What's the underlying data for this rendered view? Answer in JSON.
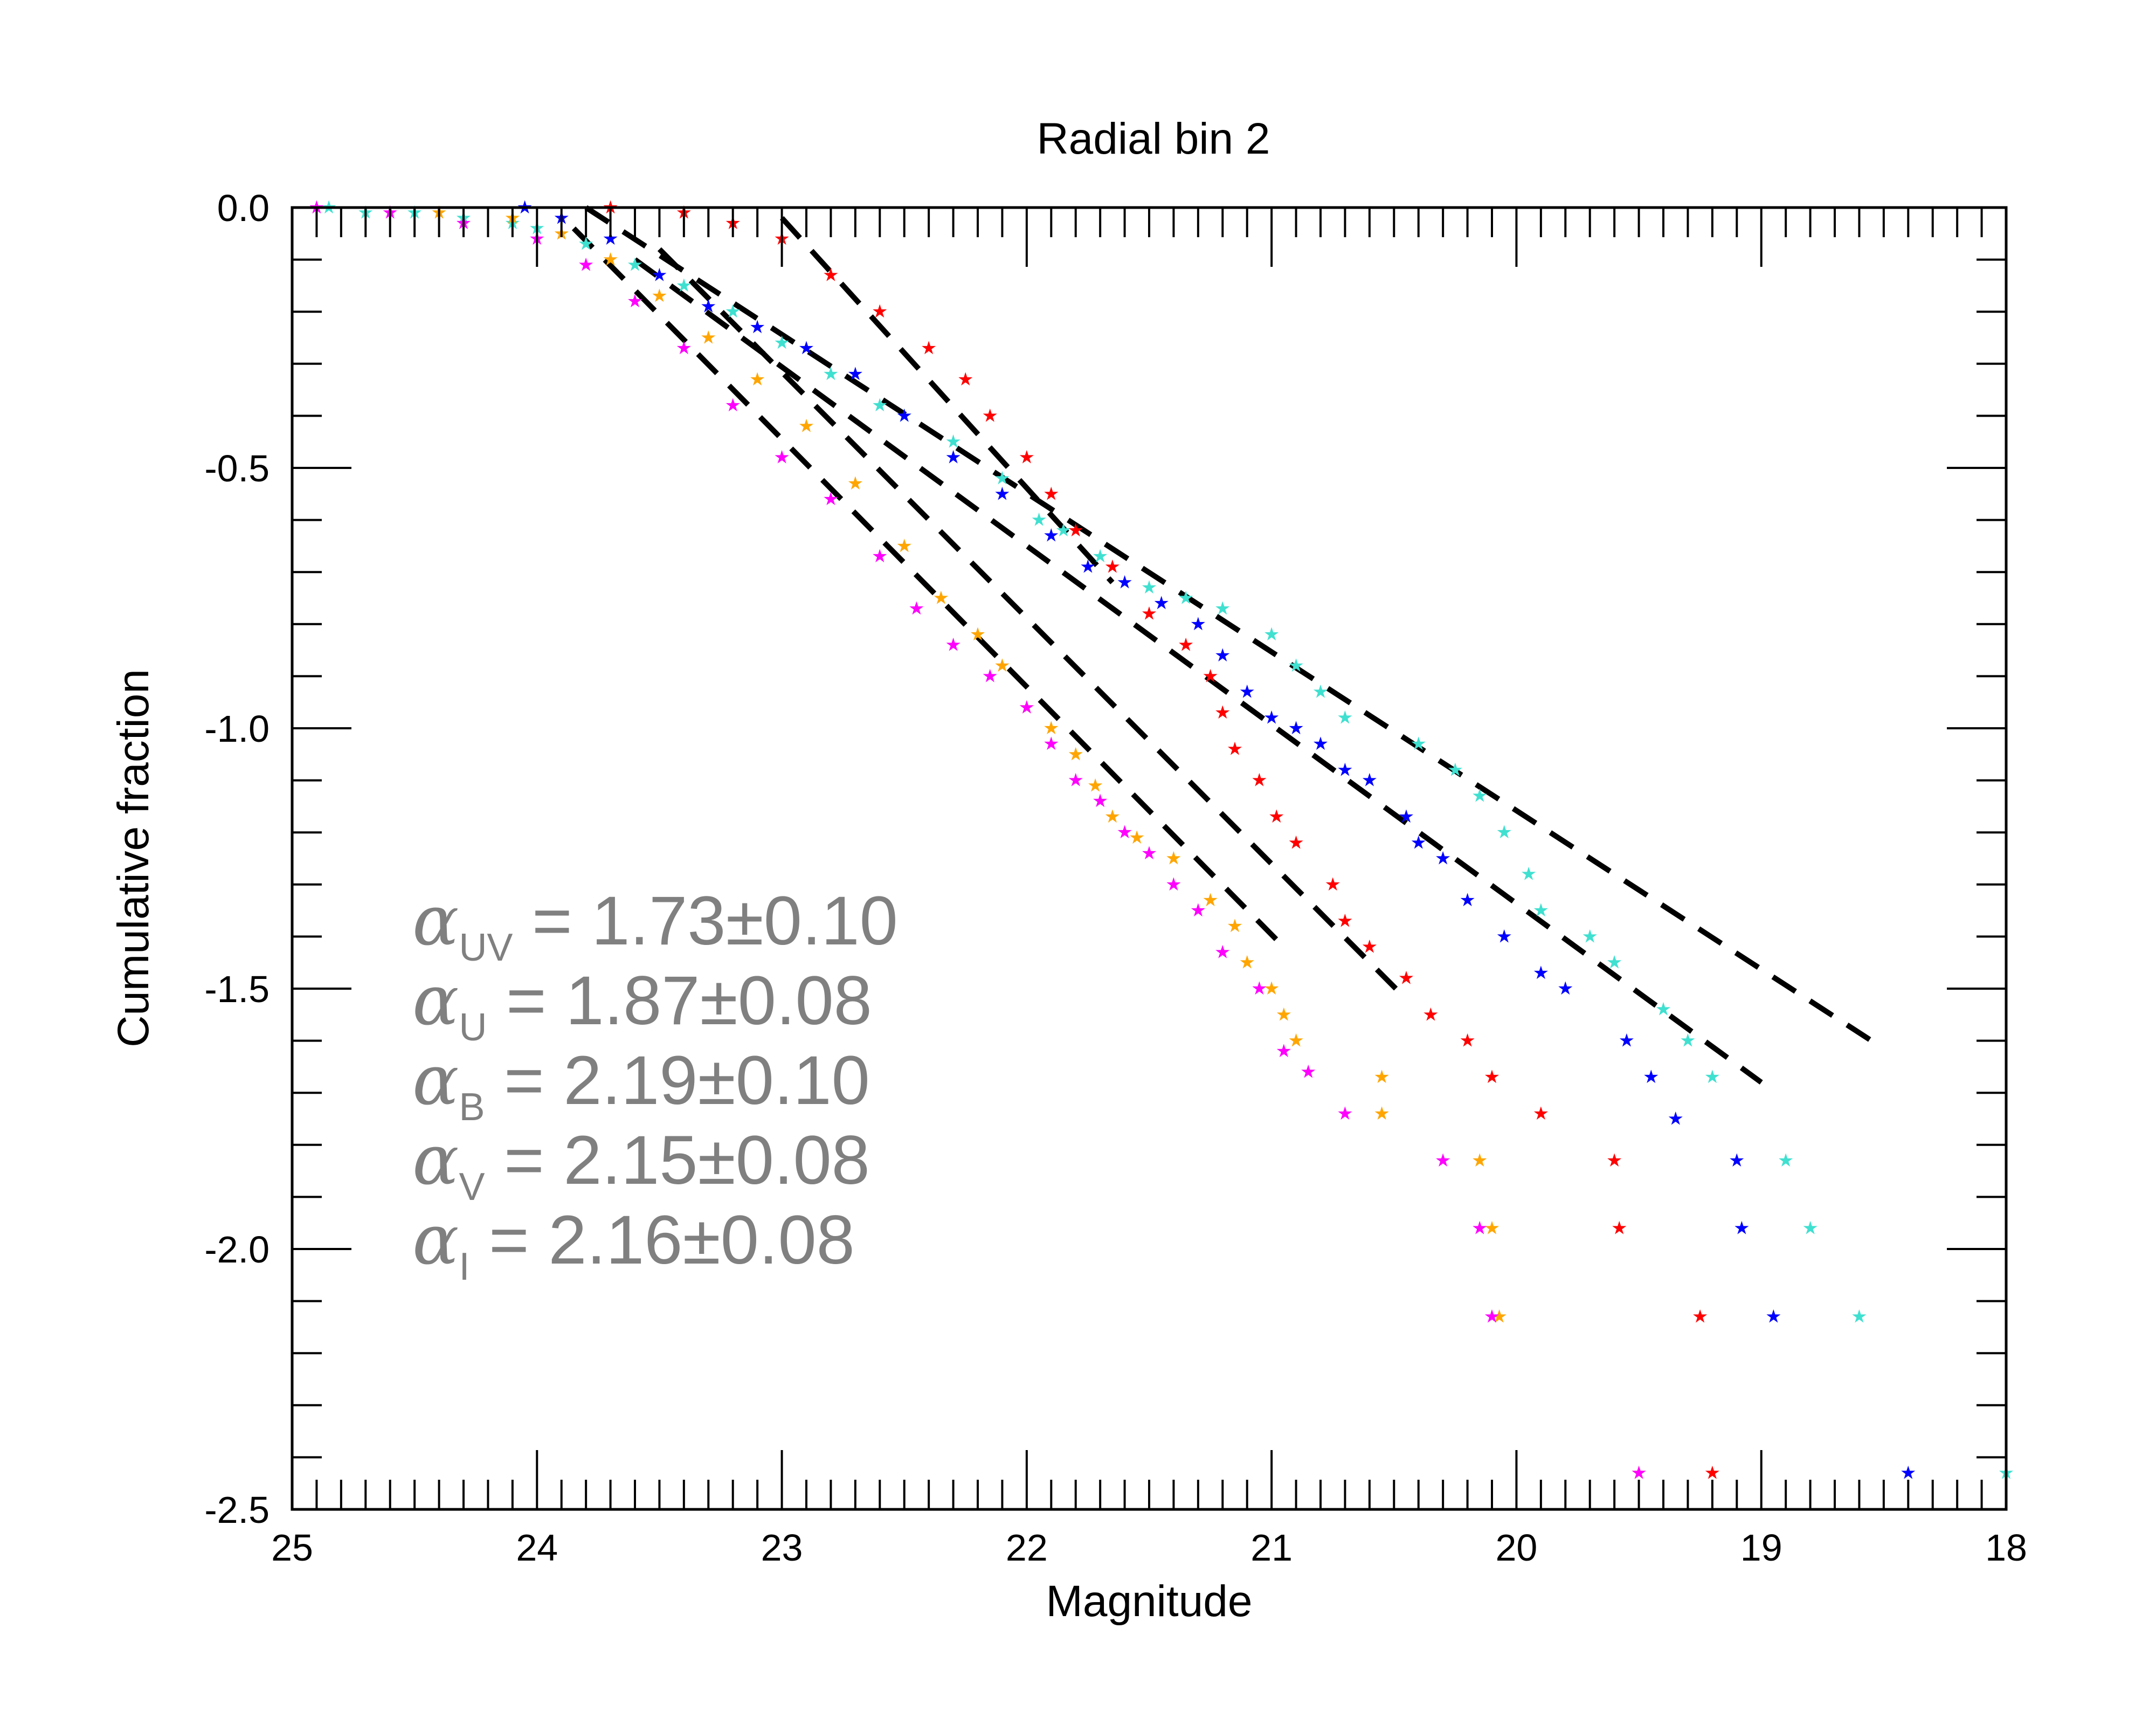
{
  "chart_data": {
    "type": "scatter",
    "title": "Radial bin 2",
    "xlabel": "Magnitude",
    "ylabel": "Cumulative fraction",
    "xlim": [
      25,
      18
    ],
    "ylim": [
      -2.5,
      0.0
    ],
    "x_ticks": [
      25,
      24,
      23,
      22,
      21,
      20,
      19,
      18
    ],
    "x_tick_labels": [
      "25",
      "24",
      "23",
      "22",
      "21",
      "20",
      "19",
      "18"
    ],
    "y_ticks": [
      0.0,
      -0.5,
      -1.0,
      -1.5,
      -2.0,
      -2.5
    ],
    "y_tick_labels": [
      "0.0",
      "-0.5",
      "-1.0",
      "-1.5",
      "-2.0",
      "-2.5"
    ],
    "marker": "★",
    "series": [
      {
        "name": "UV",
        "color": "#40E0D0",
        "points": [
          [
            24.85,
            0.0
          ],
          [
            24.7,
            -0.01
          ],
          [
            24.5,
            -0.01
          ],
          [
            24.3,
            -0.02
          ],
          [
            24.1,
            -0.03
          ],
          [
            24.0,
            -0.04
          ],
          [
            23.8,
            -0.07
          ],
          [
            23.6,
            -0.11
          ],
          [
            23.4,
            -0.15
          ],
          [
            23.2,
            -0.2
          ],
          [
            23.0,
            -0.26
          ],
          [
            22.8,
            -0.32
          ],
          [
            22.6,
            -0.38
          ],
          [
            22.5,
            -0.4
          ],
          [
            22.3,
            -0.45
          ],
          [
            22.1,
            -0.52
          ],
          [
            21.95,
            -0.6
          ],
          [
            21.85,
            -0.62
          ],
          [
            21.7,
            -0.67
          ],
          [
            21.5,
            -0.73
          ],
          [
            21.35,
            -0.75
          ],
          [
            21.2,
            -0.77
          ],
          [
            21.0,
            -0.82
          ],
          [
            20.9,
            -0.88
          ],
          [
            20.8,
            -0.93
          ],
          [
            20.7,
            -0.98
          ],
          [
            20.4,
            -1.03
          ],
          [
            20.25,
            -1.08
          ],
          [
            20.15,
            -1.13
          ],
          [
            20.05,
            -1.2
          ],
          [
            19.95,
            -1.28
          ],
          [
            19.9,
            -1.35
          ],
          [
            19.7,
            -1.4
          ],
          [
            19.6,
            -1.45
          ],
          [
            19.4,
            -1.54
          ],
          [
            19.3,
            -1.6
          ],
          [
            19.2,
            -1.67
          ],
          [
            18.9,
            -1.83
          ],
          [
            18.8,
            -1.96
          ],
          [
            18.6,
            -2.13
          ],
          [
            18.0,
            -2.43
          ]
        ]
      },
      {
        "name": "U",
        "color": "#0000FF",
        "points": [
          [
            24.05,
            0.0
          ],
          [
            23.9,
            -0.02
          ],
          [
            23.7,
            -0.06
          ],
          [
            23.5,
            -0.13
          ],
          [
            23.3,
            -0.19
          ],
          [
            23.1,
            -0.23
          ],
          [
            22.9,
            -0.27
          ],
          [
            22.7,
            -0.32
          ],
          [
            22.5,
            -0.4
          ],
          [
            22.3,
            -0.48
          ],
          [
            22.1,
            -0.55
          ],
          [
            21.9,
            -0.63
          ],
          [
            21.75,
            -0.69
          ],
          [
            21.6,
            -0.72
          ],
          [
            21.45,
            -0.76
          ],
          [
            21.3,
            -0.8
          ],
          [
            21.2,
            -0.86
          ],
          [
            21.1,
            -0.93
          ],
          [
            21.0,
            -0.98
          ],
          [
            20.9,
            -1.0
          ],
          [
            20.8,
            -1.03
          ],
          [
            20.7,
            -1.08
          ],
          [
            20.6,
            -1.1
          ],
          [
            20.45,
            -1.17
          ],
          [
            20.4,
            -1.22
          ],
          [
            20.3,
            -1.25
          ],
          [
            20.2,
            -1.33
          ],
          [
            20.05,
            -1.4
          ],
          [
            19.9,
            -1.47
          ],
          [
            19.8,
            -1.5
          ],
          [
            19.55,
            -1.6
          ],
          [
            19.45,
            -1.67
          ],
          [
            19.35,
            -1.75
          ],
          [
            19.1,
            -1.83
          ],
          [
            19.08,
            -1.96
          ],
          [
            18.95,
            -2.13
          ],
          [
            18.4,
            -2.43
          ]
        ]
      },
      {
        "name": "B",
        "color": "#FF0000",
        "points": [
          [
            23.7,
            0.0
          ],
          [
            23.4,
            -0.01
          ],
          [
            23.2,
            -0.03
          ],
          [
            23.0,
            -0.06
          ],
          [
            22.8,
            -0.13
          ],
          [
            22.6,
            -0.2
          ],
          [
            22.4,
            -0.27
          ],
          [
            22.25,
            -0.33
          ],
          [
            22.15,
            -0.4
          ],
          [
            22.0,
            -0.48
          ],
          [
            21.9,
            -0.55
          ],
          [
            21.8,
            -0.62
          ],
          [
            21.65,
            -0.69
          ],
          [
            21.5,
            -0.78
          ],
          [
            21.35,
            -0.84
          ],
          [
            21.25,
            -0.9
          ],
          [
            21.2,
            -0.97
          ],
          [
            21.15,
            -1.04
          ],
          [
            21.05,
            -1.1
          ],
          [
            20.98,
            -1.17
          ],
          [
            20.9,
            -1.22
          ],
          [
            20.75,
            -1.3
          ],
          [
            20.7,
            -1.37
          ],
          [
            20.6,
            -1.42
          ],
          [
            20.45,
            -1.48
          ],
          [
            20.35,
            -1.55
          ],
          [
            20.2,
            -1.6
          ],
          [
            20.1,
            -1.67
          ],
          [
            19.9,
            -1.74
          ],
          [
            19.6,
            -1.83
          ],
          [
            19.58,
            -1.96
          ],
          [
            19.25,
            -2.13
          ],
          [
            19.2,
            -2.43
          ]
        ]
      },
      {
        "name": "V",
        "color": "#FFA500",
        "points": [
          [
            24.4,
            -0.01
          ],
          [
            24.1,
            -0.02
          ],
          [
            23.9,
            -0.05
          ],
          [
            23.7,
            -0.1
          ],
          [
            23.5,
            -0.17
          ],
          [
            23.3,
            -0.25
          ],
          [
            23.1,
            -0.33
          ],
          [
            22.9,
            -0.42
          ],
          [
            22.7,
            -0.53
          ],
          [
            22.5,
            -0.65
          ],
          [
            22.35,
            -0.75
          ],
          [
            22.2,
            -0.82
          ],
          [
            22.1,
            -0.88
          ],
          [
            22.0,
            -0.96
          ],
          [
            21.9,
            -1.0
          ],
          [
            21.8,
            -1.05
          ],
          [
            21.72,
            -1.11
          ],
          [
            21.65,
            -1.17
          ],
          [
            21.55,
            -1.21
          ],
          [
            21.4,
            -1.25
          ],
          [
            21.25,
            -1.33
          ],
          [
            21.15,
            -1.38
          ],
          [
            21.1,
            -1.45
          ],
          [
            21.0,
            -1.5
          ],
          [
            20.95,
            -1.55
          ],
          [
            20.9,
            -1.6
          ],
          [
            20.55,
            -1.67
          ],
          [
            20.55,
            -1.74
          ],
          [
            20.15,
            -1.83
          ],
          [
            20.1,
            -1.96
          ],
          [
            20.07,
            -2.13
          ],
          [
            19.5,
            -2.43
          ]
        ]
      },
      {
        "name": "I",
        "color": "#FF00FF",
        "points": [
          [
            24.9,
            0.0
          ],
          [
            24.6,
            -0.01
          ],
          [
            24.3,
            -0.03
          ],
          [
            24.0,
            -0.06
          ],
          [
            23.8,
            -0.11
          ],
          [
            23.6,
            -0.18
          ],
          [
            23.4,
            -0.27
          ],
          [
            23.2,
            -0.38
          ],
          [
            23.0,
            -0.48
          ],
          [
            22.8,
            -0.56
          ],
          [
            22.6,
            -0.67
          ],
          [
            22.45,
            -0.77
          ],
          [
            22.3,
            -0.84
          ],
          [
            22.15,
            -0.9
          ],
          [
            22.0,
            -0.96
          ],
          [
            21.9,
            -1.03
          ],
          [
            21.8,
            -1.1
          ],
          [
            21.7,
            -1.14
          ],
          [
            21.6,
            -1.2
          ],
          [
            21.5,
            -1.24
          ],
          [
            21.4,
            -1.3
          ],
          [
            21.3,
            -1.35
          ],
          [
            21.2,
            -1.43
          ],
          [
            21.05,
            -1.5
          ],
          [
            20.95,
            -1.62
          ],
          [
            20.85,
            -1.66
          ],
          [
            20.7,
            -1.74
          ],
          [
            20.3,
            -1.83
          ],
          [
            20.15,
            -1.96
          ],
          [
            20.1,
            -2.13
          ],
          [
            19.5,
            -2.43
          ]
        ]
      }
    ],
    "fit_lines": [
      {
        "name": "UV fit",
        "color": "#000000",
        "dash": true,
        "x": [
          23.8,
          18.55
        ],
        "y": [
          0.0,
          -1.6
        ]
      },
      {
        "name": "U fit",
        "color": "#000000",
        "dash": true,
        "x": [
          23.6,
          19.0
        ],
        "y": [
          -0.1,
          -1.68
        ]
      },
      {
        "name": "B fit",
        "color": "#000000",
        "dash": true,
        "x": [
          23.0,
          21.65
        ],
        "y": [
          -0.02,
          -0.72
        ]
      },
      {
        "name": "V fit",
        "color": "#000000",
        "dash": true,
        "x": [
          23.5,
          20.45
        ],
        "y": [
          -0.08,
          -1.52
        ]
      },
      {
        "name": "I fit",
        "color": "#000000",
        "dash": true,
        "x": [
          23.85,
          20.95
        ],
        "y": [
          -0.04,
          -1.42
        ]
      }
    ],
    "annotations": [
      {
        "symbol": "α",
        "sub": "UV",
        "text": " = 1.73±0.10"
      },
      {
        "symbol": "α",
        "sub": "U",
        "text": " = 1.87±0.08"
      },
      {
        "symbol": "α",
        "sub": "B",
        "text": " = 2.19±0.10"
      },
      {
        "symbol": "α",
        "sub": "V",
        "text": " = 2.15±0.08"
      },
      {
        "symbol": "α",
        "sub": "I",
        "text": " = 2.16±0.08"
      }
    ]
  }
}
